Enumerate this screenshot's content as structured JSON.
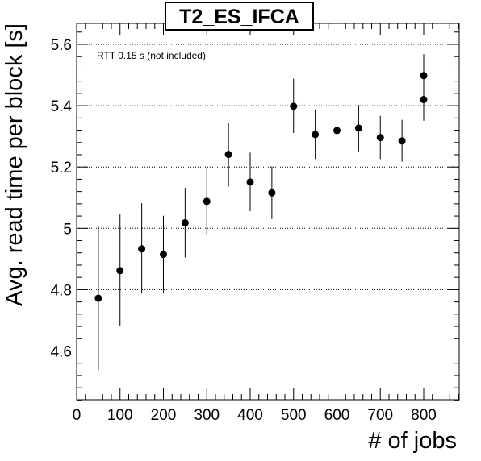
{
  "chart_data": {
    "type": "scatter",
    "title": "T2_ES_IFCA",
    "xlabel": "# of jobs",
    "ylabel": "Avg. read time per block [s]",
    "annotation": "RTT 0.15 s (not included)",
    "xlim": [
      0,
      880
    ],
    "ylim": [
      4.44,
      5.67
    ],
    "xticks": [
      0,
      100,
      200,
      300,
      400,
      500,
      600,
      700,
      800
    ],
    "xtick_labels": [
      "0",
      "100",
      "200",
      "300",
      "400",
      "500",
      "600",
      "700",
      "800"
    ],
    "yticks": [
      4.6,
      4.8,
      5.0,
      5.2,
      5.4,
      5.6
    ],
    "ytick_labels": [
      "4.6",
      "4.8",
      "5",
      "5.2",
      "5.4",
      "5.6"
    ],
    "grid": "horizontal dotted",
    "marker_color": "#000000",
    "points": [
      {
        "x": 50,
        "y": 4.772,
        "err_low": 4.538,
        "err_high": 5.007
      },
      {
        "x": 100,
        "y": 4.862,
        "err_low": 4.68,
        "err_high": 5.045
      },
      {
        "x": 150,
        "y": 4.933,
        "err_low": 4.787,
        "err_high": 5.082
      },
      {
        "x": 200,
        "y": 4.915,
        "err_low": 4.791,
        "err_high": 5.041
      },
      {
        "x": 250,
        "y": 5.018,
        "err_low": 4.905,
        "err_high": 5.132
      },
      {
        "x": 300,
        "y": 5.088,
        "err_low": 4.981,
        "err_high": 5.196
      },
      {
        "x": 350,
        "y": 5.241,
        "err_low": 5.136,
        "err_high": 5.343
      },
      {
        "x": 400,
        "y": 5.151,
        "err_low": 5.056,
        "err_high": 5.247
      },
      {
        "x": 450,
        "y": 5.116,
        "err_low": 5.03,
        "err_high": 5.202
      },
      {
        "x": 500,
        "y": 5.398,
        "err_low": 5.311,
        "err_high": 5.488
      },
      {
        "x": 550,
        "y": 5.306,
        "err_low": 5.226,
        "err_high": 5.388
      },
      {
        "x": 600,
        "y": 5.319,
        "err_low": 5.243,
        "err_high": 5.399
      },
      {
        "x": 650,
        "y": 5.327,
        "err_low": 5.251,
        "err_high": 5.403
      },
      {
        "x": 700,
        "y": 5.296,
        "err_low": 5.226,
        "err_high": 5.367
      },
      {
        "x": 750,
        "y": 5.285,
        "err_low": 5.217,
        "err_high": 5.354
      },
      {
        "x": 800,
        "y": 5.42,
        "err_low": 5.351,
        "err_high": 5.491
      },
      {
        "x": 800,
        "y": 5.498,
        "err_low": 5.428,
        "err_high": 5.568
      }
    ]
  }
}
